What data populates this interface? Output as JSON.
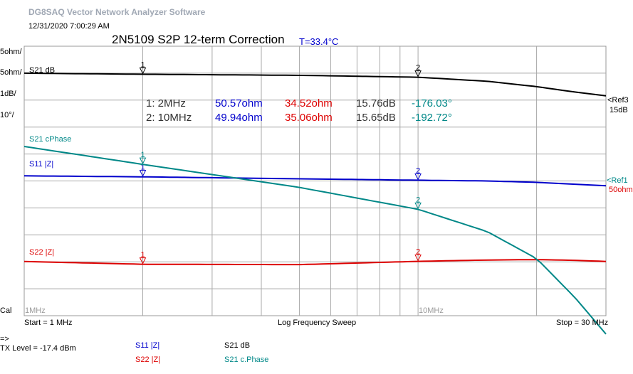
{
  "header": {
    "app_title": "DG8SAQ Vector Network Analyzer Software",
    "timestamp": "12/31/2020   7:00:29 AM",
    "chart_title": "2N5109 S2P 12-term Correction",
    "temperature": "T=33.4°C"
  },
  "scales": [
    {
      "text": "5ohm/",
      "color": "#0000cc"
    },
    {
      "text": "5ohm/",
      "color": "#dd0000"
    },
    {
      "text": "1dB/",
      "color": "#000000"
    },
    {
      "text": "10°/",
      "color": "#008888"
    }
  ],
  "markers_table": [
    {
      "label": "1: 2MHz",
      "s11": "50.57ohm",
      "s22": "34.52ohm",
      "s21db": "15.76dB",
      "phase": "-176.03°"
    },
    {
      "label": "2: 10MHz",
      "s11": "49.94ohm",
      "s22": "35.06ohm",
      "s21db": "15.65dB",
      "phase": "-192.72°"
    }
  ],
  "ref_labels": {
    "ref3": "<Ref3",
    "ref3_value": "15dB",
    "ref12": "<Ref1",
    "ref12_value": "50ohm"
  },
  "footer": {
    "cal": "Cal",
    "start": "Start = 1 MHz",
    "sweep": "Log Frequency Sweep",
    "stop": "Stop = 30 MHz",
    "prompt": "=>",
    "tx_level": "TX Level = -17.4 dBm"
  },
  "legend": [
    {
      "text": "S11  |Z|",
      "color": "#0000cc"
    },
    {
      "text": "S22  |Z|",
      "color": "#dd0000"
    },
    {
      "text": "S21  dB",
      "color": "#000000"
    },
    {
      "text": "S21  c.Phase",
      "color": "#008888"
    }
  ],
  "chart_data": {
    "type": "line",
    "x_scale": "log",
    "xlim": [
      1,
      30
    ],
    "x_unit": "MHz",
    "x_tick_labels": [
      "1MHz",
      "10MHz"
    ],
    "grid": true,
    "markers": [
      {
        "id": "1",
        "x": 2
      },
      {
        "id": "2",
        "x": 10
      }
    ],
    "series": [
      {
        "name": "S21 dB",
        "color": "#000000",
        "x": [
          1,
          2,
          5,
          10,
          15,
          20,
          25,
          30
        ],
        "y": [
          15.8,
          15.76,
          15.72,
          15.65,
          15.5,
          15.3,
          15.1,
          14.96
        ]
      },
      {
        "name": "S11 |Z|",
        "color": "#0000cc",
        "x": [
          1,
          2,
          5,
          10,
          15,
          20,
          25,
          30
        ],
        "y": [
          50.75,
          50.57,
          50.2,
          49.94,
          49.8,
          49.55,
          49.2,
          48.9
        ]
      },
      {
        "name": "S22 |Z|",
        "color": "#dd0000",
        "x": [
          1,
          2,
          5,
          10,
          15,
          20,
          25,
          30
        ],
        "y": [
          35.03,
          34.52,
          34.45,
          35.06,
          35.3,
          35.38,
          35.25,
          35.04
        ]
      },
      {
        "name": "S21 cPhase",
        "color": "#008888",
        "x": [
          1,
          2,
          5,
          10,
          15,
          20,
          25,
          30
        ],
        "y": [
          -169.4,
          -176.03,
          -184.6,
          -192.72,
          -201,
          -211,
          -225.4,
          -239.0
        ]
      }
    ]
  }
}
